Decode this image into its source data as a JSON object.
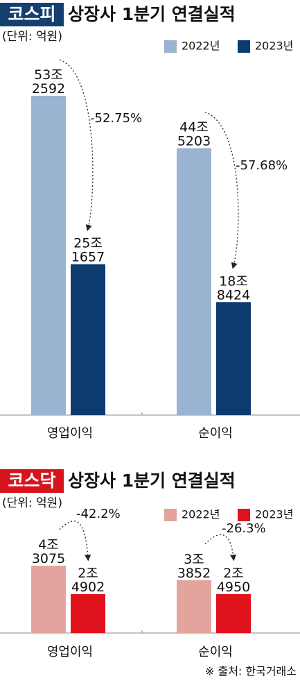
{
  "chart_data": [
    {
      "type": "bar",
      "title_badge": "코스피",
      "badge_color": "#153f6e",
      "title": "상장사 1분기 연결실적",
      "unit": "(단위: 억원)",
      "categories": [
        "영업이익",
        "순이익"
      ],
      "series": [
        {
          "name": "2022년",
          "color": "#9ab3d1",
          "values": [
            532592,
            445203
          ],
          "value_labels": [
            "53조 2592",
            "44조 5203"
          ]
        },
        {
          "name": "2023년",
          "color": "#0d3b6f",
          "values": [
            251657,
            188424
          ],
          "value_labels": [
            "25조 1657",
            "18조 8424"
          ]
        }
      ],
      "change_labels": [
        "-52.75%",
        "-57.68%"
      ]
    },
    {
      "type": "bar",
      "title_badge": "코스닥",
      "badge_color": "#d7141d",
      "title": "상장사 1분기 연결실적",
      "unit": "(단위: 억원)",
      "categories": [
        "영업이익",
        "순이익"
      ],
      "series": [
        {
          "name": "2022년",
          "color": "#e2a49c",
          "values": [
            43075,
            33852
          ],
          "value_labels": [
            "4조 3075",
            "3조 3852"
          ]
        },
        {
          "name": "2023년",
          "color": "#e0131c",
          "values": [
            24902,
            24950
          ],
          "value_labels": [
            "2조 4902",
            "2조 4950"
          ]
        }
      ],
      "change_labels": [
        "-42.2%",
        "-26.3%"
      ]
    }
  ],
  "source": "※ 출처: 한국거래소"
}
